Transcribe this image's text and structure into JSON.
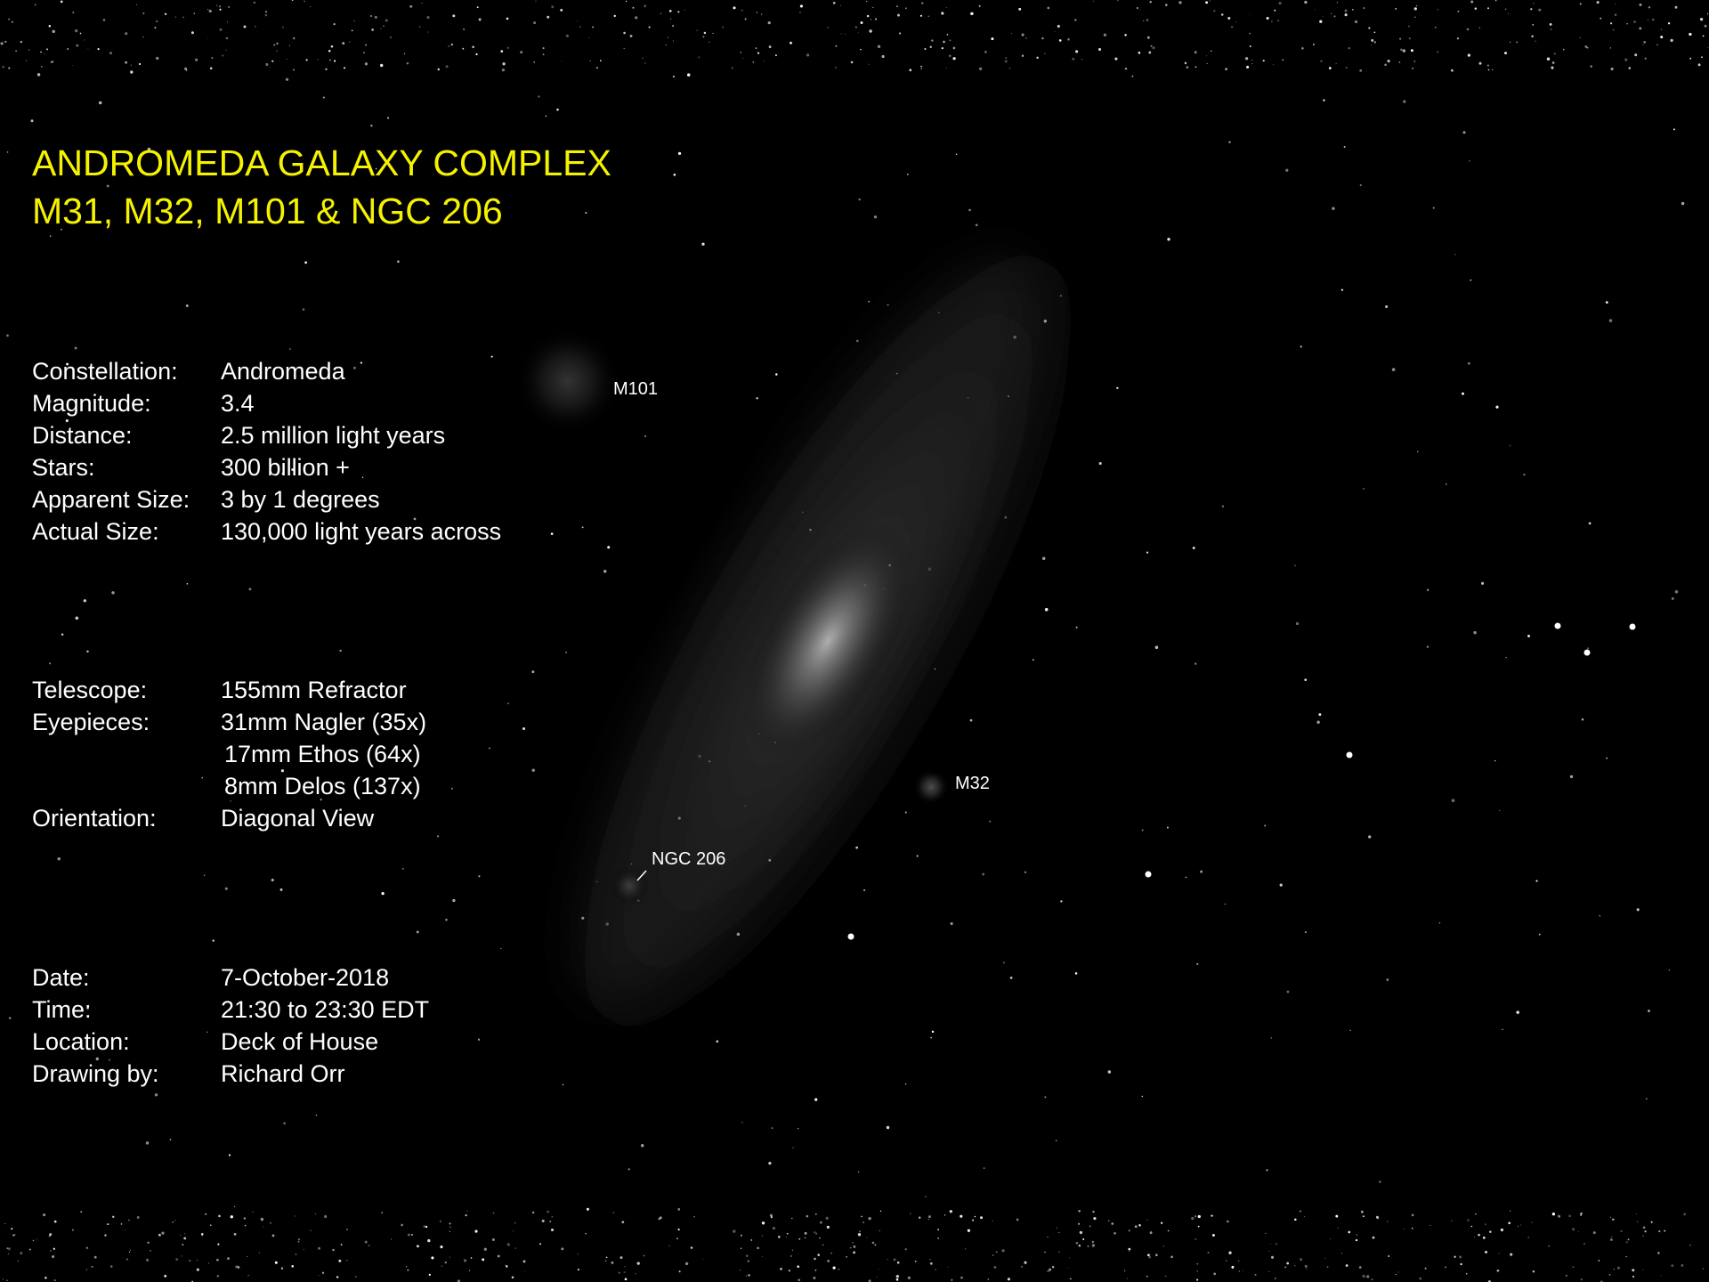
{
  "title": {
    "line1": "ANDROMEDA GALAXY COMPLEX",
    "line2": "M31, M32, M101 & NGC 206"
  },
  "sections": [
    [
      {
        "label": "Constellation:",
        "values": [
          "Andromeda"
        ]
      },
      {
        "label": "Magnitude:",
        "values": [
          "3.4"
        ]
      },
      {
        "label": "Distance:",
        "values": [
          "2.5 million light years"
        ]
      },
      {
        "label": "Stars:",
        "values": [
          "300 billion +"
        ]
      },
      {
        "label": "Apparent Size:",
        "values": [
          "3 by 1 degrees"
        ]
      },
      {
        "label": "Actual Size:",
        "values": [
          "130,000 light years across"
        ]
      }
    ],
    [
      {
        "label": "Telescope:",
        "values": [
          "155mm Refractor"
        ]
      },
      {
        "label": "Eyepieces:",
        "values": [
          "31mm Nagler (35x)",
          "17mm Ethos (64x)",
          "8mm Delos (137x)"
        ]
      },
      {
        "label": "Orientation:",
        "values": [
          "Diagonal View"
        ]
      }
    ],
    [
      {
        "label": "Date:",
        "values": [
          "7-October-2018"
        ]
      },
      {
        "label": "Time:",
        "values": [
          "21:30 to 23:30 EDT"
        ]
      },
      {
        "label": "Location:",
        "values": [
          "Deck of House"
        ]
      },
      {
        "label": "Drawing by:",
        "values": [
          "Richard Orr"
        ]
      }
    ]
  ],
  "objects": {
    "m101": "M101",
    "m32": "M32",
    "ngc206": "NGC 206"
  }
}
